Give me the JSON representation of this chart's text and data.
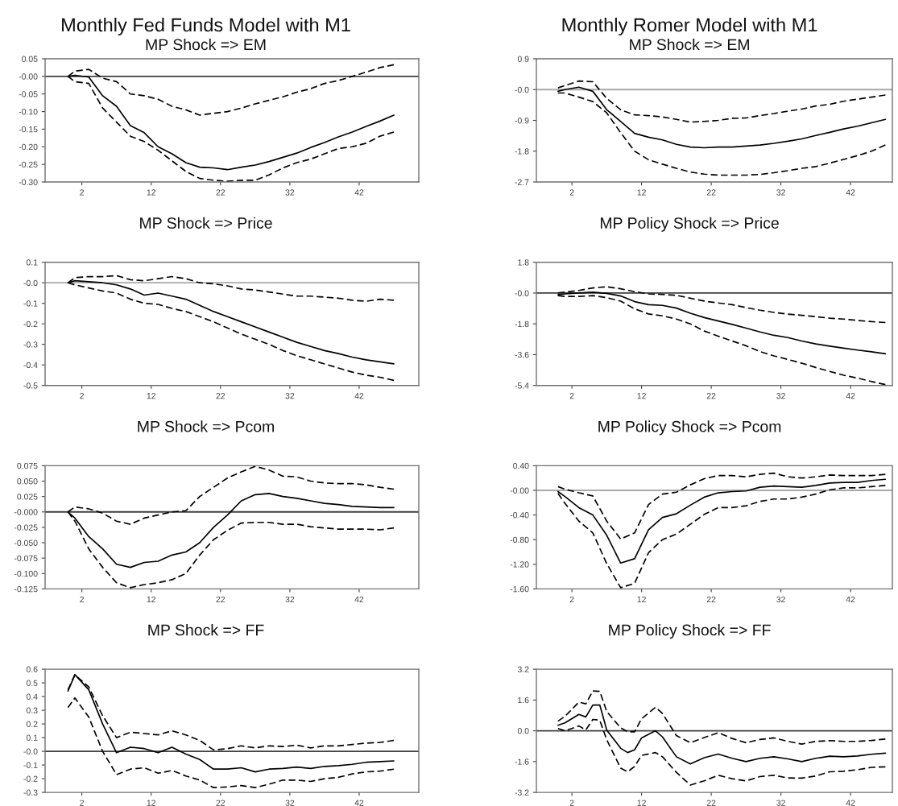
{
  "chart_data": [
    {
      "type": "line",
      "title": "Monthly Fed Funds Model with M1",
      "subtitle": "MP Shock => EM",
      "x": [
        0,
        1,
        3,
        5,
        7,
        9,
        11,
        13,
        15,
        17,
        19,
        21,
        23,
        25,
        27,
        29,
        31,
        33,
        35,
        37,
        39,
        41,
        43,
        45,
        47
      ],
      "xlim": [
        -3.3,
        50.6
      ],
      "xticks": [
        2,
        12,
        22,
        32,
        42
      ],
      "ylim": [
        -0.3,
        0.05
      ],
      "yticks": [
        {
          "value": 0.05,
          "label": "0.05"
        },
        {
          "value": 0,
          "label": "-0.00"
        },
        {
          "value": -0.05,
          "label": "-0.05"
        },
        {
          "value": -0.1,
          "label": "-0.10"
        },
        {
          "value": -0.15,
          "label": "-0.15"
        },
        {
          "value": -0.2,
          "label": "-0.20"
        },
        {
          "value": -0.25,
          "label": "-0.25"
        },
        {
          "value": -0.3,
          "label": "-0.30"
        }
      ],
      "ref_lines": [
        {
          "axis": "y",
          "value": 0,
          "color": "#404040"
        }
      ],
      "series": [
        {
          "color": "#000000",
          "line_style": "solid",
          "values": [
            0,
            0.003,
            -0.002,
            -0.055,
            -0.085,
            -0.14,
            -0.16,
            -0.2,
            -0.22,
            -0.245,
            -0.258,
            -0.26,
            -0.265,
            -0.258,
            -0.252,
            -0.242,
            -0.23,
            -0.218,
            -0.202,
            -0.188,
            -0.172,
            -0.158,
            -0.142,
            -0.127,
            -0.11
          ]
        },
        {
          "color": "#000000",
          "line_style": "dashed",
          "values": [
            0,
            0.015,
            0.02,
            -0.005,
            -0.015,
            -0.05,
            -0.055,
            -0.065,
            -0.085,
            -0.095,
            -0.11,
            -0.105,
            -0.1,
            -0.09,
            -0.078,
            -0.068,
            -0.058,
            -0.045,
            -0.035,
            -0.02,
            -0.012,
            0.0,
            0.012,
            0.025,
            0.033
          ]
        },
        {
          "color": "#000000",
          "line_style": "dashed",
          "values": [
            0,
            -0.015,
            -0.02,
            -0.09,
            -0.13,
            -0.17,
            -0.185,
            -0.21,
            -0.24,
            -0.27,
            -0.29,
            -0.295,
            -0.298,
            -0.295,
            -0.295,
            -0.28,
            -0.26,
            -0.245,
            -0.235,
            -0.22,
            -0.205,
            -0.2,
            -0.19,
            -0.17,
            -0.158
          ]
        }
      ]
    },
    {
      "type": "line",
      "title": "Monthly Romer Model with M1",
      "subtitle": "MP Shock => EM",
      "x": [
        0,
        1,
        3,
        5,
        7,
        9,
        11,
        13,
        15,
        17,
        19,
        21,
        23,
        25,
        27,
        29,
        31,
        33,
        35,
        37,
        39,
        41,
        43,
        45,
        47
      ],
      "xlim": [
        -3.1,
        48
      ],
      "xticks": [
        2,
        12,
        22,
        32,
        42
      ],
      "ylim": [
        -2.7,
        0.9
      ],
      "yticks": [
        {
          "value": 0.9,
          "label": "0.9"
        },
        {
          "value": 0,
          "label": "-0.0"
        },
        {
          "value": -0.9,
          "label": "-0.9"
        },
        {
          "value": -1.8,
          "label": "-1.8"
        },
        {
          "value": -2.7,
          "label": "-2.7"
        }
      ],
      "ref_lines": [
        {
          "axis": "y",
          "value": 0,
          "color": "#a8a8a8"
        }
      ],
      "series": [
        {
          "color": "#000000",
          "line_style": "solid",
          "values": [
            -0.05,
            0.0,
            0.07,
            -0.05,
            -0.59,
            -0.93,
            -1.28,
            -1.39,
            -1.47,
            -1.6,
            -1.68,
            -1.7,
            -1.68,
            -1.68,
            -1.65,
            -1.62,
            -1.57,
            -1.51,
            -1.44,
            -1.34,
            -1.25,
            -1.15,
            -1.07,
            -0.97,
            -0.87
          ]
        },
        {
          "color": "#000000",
          "line_style": "dashed",
          "values": [
            0.05,
            0.12,
            0.25,
            0.23,
            -0.26,
            -0.59,
            -0.74,
            -0.76,
            -0.8,
            -0.87,
            -0.95,
            -0.93,
            -0.9,
            -0.84,
            -0.83,
            -0.76,
            -0.7,
            -0.63,
            -0.57,
            -0.48,
            -0.43,
            -0.34,
            -0.28,
            -0.22,
            -0.16
          ]
        },
        {
          "color": "#000000",
          "line_style": "dashed",
          "values": [
            -0.1,
            -0.1,
            -0.22,
            -0.35,
            -0.68,
            -1.26,
            -1.8,
            -2.05,
            -2.18,
            -2.3,
            -2.41,
            -2.47,
            -2.5,
            -2.5,
            -2.5,
            -2.48,
            -2.43,
            -2.37,
            -2.3,
            -2.25,
            -2.15,
            -2.04,
            -1.93,
            -1.8,
            -1.62
          ]
        }
      ]
    },
    {
      "type": "line",
      "title": "MP Shock => Price",
      "x": [
        0,
        1,
        3,
        5,
        7,
        9,
        11,
        13,
        15,
        17,
        19,
        21,
        23,
        25,
        27,
        29,
        31,
        33,
        35,
        37,
        39,
        41,
        43,
        45,
        47
      ],
      "xlim": [
        -3.3,
        50.6
      ],
      "xticks": [
        2,
        12,
        22,
        32,
        42
      ],
      "ylim": [
        -0.5,
        0.1
      ],
      "yticks": [
        {
          "value": 0.1,
          "label": "0.1"
        },
        {
          "value": 0,
          "label": "-0.0"
        },
        {
          "value": -0.1,
          "label": "-0.1"
        },
        {
          "value": -0.2,
          "label": "-0.2"
        },
        {
          "value": -0.3,
          "label": "-0.3"
        },
        {
          "value": -0.4,
          "label": "-0.4"
        },
        {
          "value": -0.5,
          "label": "-0.5"
        }
      ],
      "ref_lines": [
        {
          "axis": "y",
          "value": 0,
          "color": "#a8a8a8"
        }
      ],
      "series": [
        {
          "color": "#000000",
          "line_style": "solid",
          "values": [
            0,
            0.01,
            0.005,
            0.0,
            -0.01,
            -0.03,
            -0.06,
            -0.05,
            -0.065,
            -0.08,
            -0.11,
            -0.14,
            -0.165,
            -0.19,
            -0.215,
            -0.24,
            -0.265,
            -0.29,
            -0.31,
            -0.33,
            -0.345,
            -0.362,
            -0.375,
            -0.385,
            -0.395
          ]
        },
        {
          "color": "#000000",
          "line_style": "dashed",
          "values": [
            0,
            0.025,
            0.03,
            0.03,
            0.035,
            0.015,
            0.01,
            0.02,
            0.03,
            0.02,
            0.0,
            -0.005,
            -0.015,
            -0.03,
            -0.035,
            -0.045,
            -0.055,
            -0.065,
            -0.065,
            -0.07,
            -0.075,
            -0.085,
            -0.09,
            -0.08,
            -0.085
          ]
        },
        {
          "color": "#000000",
          "line_style": "dashed",
          "values": [
            0,
            -0.01,
            -0.025,
            -0.04,
            -0.05,
            -0.08,
            -0.1,
            -0.105,
            -0.125,
            -0.14,
            -0.165,
            -0.19,
            -0.22,
            -0.25,
            -0.275,
            -0.3,
            -0.33,
            -0.355,
            -0.375,
            -0.395,
            -0.415,
            -0.435,
            -0.45,
            -0.46,
            -0.475
          ]
        }
      ]
    },
    {
      "type": "line",
      "title": "MP Policy Shock => Price",
      "x": [
        0,
        1,
        3,
        5,
        7,
        9,
        11,
        13,
        15,
        17,
        19,
        21,
        23,
        25,
        27,
        29,
        31,
        33,
        35,
        37,
        39,
        41,
        43,
        45,
        47
      ],
      "xlim": [
        -3.1,
        48
      ],
      "xticks": [
        2,
        12,
        22,
        32,
        42
      ],
      "ylim": [
        -5.4,
        1.8
      ],
      "yticks": [
        {
          "value": 1.8,
          "label": "1.8"
        },
        {
          "value": 0,
          "label": "-0.0"
        },
        {
          "value": -1.8,
          "label": "-1.8"
        },
        {
          "value": -3.6,
          "label": "-3.6"
        },
        {
          "value": -5.4,
          "label": "-5.4"
        }
      ],
      "ref_lines": [
        {
          "axis": "y",
          "value": 0,
          "color": "#404040"
        }
      ],
      "series": [
        {
          "color": "#000000",
          "line_style": "solid",
          "values": [
            -0.1,
            -0.05,
            0.0,
            0.05,
            -0.02,
            -0.17,
            -0.5,
            -0.68,
            -0.72,
            -0.88,
            -1.18,
            -1.43,
            -1.63,
            -1.83,
            -2.05,
            -2.27,
            -2.47,
            -2.6,
            -2.8,
            -2.97,
            -3.1,
            -3.22,
            -3.33,
            -3.43,
            -3.55
          ]
        },
        {
          "color": "#000000",
          "line_style": "dashed",
          "values": [
            0.0,
            0.05,
            0.15,
            0.3,
            0.37,
            0.25,
            0.08,
            -0.05,
            -0.08,
            -0.13,
            -0.3,
            -0.47,
            -0.58,
            -0.68,
            -0.85,
            -1.0,
            -1.13,
            -1.23,
            -1.3,
            -1.38,
            -1.47,
            -1.52,
            -1.6,
            -1.67,
            -1.72
          ]
        },
        {
          "color": "#000000",
          "line_style": "dashed",
          "values": [
            -0.15,
            -0.2,
            -0.2,
            -0.15,
            -0.27,
            -0.47,
            -0.92,
            -1.22,
            -1.33,
            -1.52,
            -1.8,
            -2.22,
            -2.52,
            -2.8,
            -3.08,
            -3.42,
            -3.67,
            -3.88,
            -4.1,
            -4.35,
            -4.58,
            -4.8,
            -4.97,
            -5.17,
            -5.35
          ]
        }
      ]
    },
    {
      "type": "line",
      "title": "MP Shock => Pcom",
      "x": [
        0,
        1,
        3,
        5,
        7,
        9,
        11,
        13,
        15,
        17,
        19,
        21,
        23,
        25,
        27,
        29,
        31,
        33,
        35,
        37,
        39,
        41,
        43,
        45,
        47
      ],
      "xlim": [
        -3.3,
        50.6
      ],
      "xticks": [
        2,
        12,
        22,
        32,
        42
      ],
      "ylim": [
        -0.125,
        0.075
      ],
      "yticks": [
        {
          "value": 0.075,
          "label": "0.075"
        },
        {
          "value": 0.05,
          "label": "0.050"
        },
        {
          "value": 0.025,
          "label": "0.025"
        },
        {
          "value": 0,
          "label": "-0.000"
        },
        {
          "value": -0.025,
          "label": "-0.025"
        },
        {
          "value": -0.05,
          "label": "-0.050"
        },
        {
          "value": -0.075,
          "label": "-0.075"
        },
        {
          "value": -0.1,
          "label": "-0.100"
        },
        {
          "value": -0.125,
          "label": "-0.125"
        }
      ],
      "ref_lines": [
        {
          "axis": "y",
          "value": 0,
          "color": "#404040"
        }
      ],
      "series": [
        {
          "color": "#000000",
          "line_style": "solid",
          "values": [
            0,
            -0.01,
            -0.04,
            -0.06,
            -0.085,
            -0.09,
            -0.082,
            -0.08,
            -0.07,
            -0.065,
            -0.05,
            -0.025,
            -0.005,
            0.018,
            0.028,
            0.03,
            0.025,
            0.022,
            0.018,
            0.014,
            0.012,
            0.009,
            0.008,
            0.007,
            0.007
          ]
        },
        {
          "color": "#000000",
          "line_style": "dashed",
          "values": [
            0,
            0.008,
            0.005,
            -0.002,
            -0.015,
            -0.02,
            -0.01,
            -0.005,
            0.0,
            0.002,
            0.025,
            0.04,
            0.055,
            0.065,
            0.074,
            0.068,
            0.058,
            0.057,
            0.05,
            0.047,
            0.046,
            0.046,
            0.044,
            0.04,
            0.037
          ]
        },
        {
          "color": "#000000",
          "line_style": "dashed",
          "values": [
            0,
            -0.015,
            -0.06,
            -0.09,
            -0.115,
            -0.123,
            -0.118,
            -0.115,
            -0.11,
            -0.1,
            -0.07,
            -0.045,
            -0.03,
            -0.018,
            -0.017,
            -0.017,
            -0.02,
            -0.02,
            -0.024,
            -0.026,
            -0.028,
            -0.028,
            -0.028,
            -0.029,
            -0.026
          ]
        }
      ]
    },
    {
      "type": "line",
      "title": "MP Policy Shock => Pcom",
      "x": [
        0,
        1,
        3,
        5,
        7,
        9,
        11,
        13,
        15,
        17,
        19,
        21,
        23,
        25,
        27,
        29,
        31,
        33,
        35,
        37,
        39,
        41,
        43,
        45,
        47
      ],
      "xlim": [
        -3.1,
        48
      ],
      "xticks": [
        2,
        12,
        22,
        32,
        42
      ],
      "ylim": [
        -1.6,
        0.4
      ],
      "yticks": [
        {
          "value": 0.4,
          "label": "0.40"
        },
        {
          "value": 0,
          "label": "-0.00"
        },
        {
          "value": -0.4,
          "label": "-0.40"
        },
        {
          "value": -0.8,
          "label": "-0.80"
        },
        {
          "value": -1.2,
          "label": "-1.20"
        },
        {
          "value": -1.6,
          "label": "-1.60"
        }
      ],
      "ref_lines": [
        {
          "axis": "y",
          "value": 0,
          "color": "#a8a8a8"
        }
      ],
      "series": [
        {
          "color": "#000000",
          "line_style": "solid",
          "values": [
            -0.02,
            -0.1,
            -0.28,
            -0.4,
            -0.73,
            -1.18,
            -1.11,
            -0.64,
            -0.44,
            -0.38,
            -0.24,
            -0.11,
            -0.04,
            -0.02,
            -0.01,
            0.05,
            0.07,
            0.06,
            0.05,
            0.08,
            0.12,
            0.13,
            0.13,
            0.16,
            0.18
          ]
        },
        {
          "color": "#000000",
          "line_style": "dashed",
          "values": [
            0.06,
            0.02,
            -0.04,
            -0.09,
            -0.5,
            -0.79,
            -0.69,
            -0.23,
            -0.06,
            -0.03,
            0.09,
            0.19,
            0.24,
            0.24,
            0.22,
            0.26,
            0.28,
            0.22,
            0.2,
            0.22,
            0.25,
            0.24,
            0.24,
            0.24,
            0.26
          ]
        },
        {
          "color": "#000000",
          "line_style": "dashed",
          "values": [
            -0.05,
            -0.21,
            -0.5,
            -0.69,
            -1.19,
            -1.58,
            -1.51,
            -1.01,
            -0.8,
            -0.71,
            -0.55,
            -0.39,
            -0.28,
            -0.28,
            -0.25,
            -0.18,
            -0.14,
            -0.14,
            -0.11,
            -0.06,
            0.01,
            0.04,
            0.04,
            0.06,
            0.08
          ]
        }
      ]
    },
    {
      "type": "line",
      "title": "MP Shock => FF",
      "x": [
        0,
        1,
        3,
        5,
        7,
        9,
        11,
        13,
        15,
        17,
        19,
        21,
        23,
        25,
        27,
        29,
        31,
        33,
        35,
        37,
        39,
        41,
        43,
        45,
        47
      ],
      "xlim": [
        -3.3,
        50.6
      ],
      "xticks": [
        2,
        12,
        22,
        32,
        42
      ],
      "ylim": [
        -0.3,
        0.6
      ],
      "yticks": [
        {
          "value": 0.6,
          "label": "0.6"
        },
        {
          "value": 0.5,
          "label": "0.5"
        },
        {
          "value": 0.4,
          "label": "0.4"
        },
        {
          "value": 0.3,
          "label": "0.3"
        },
        {
          "value": 0.2,
          "label": "0.2"
        },
        {
          "value": 0.1,
          "label": "0.1"
        },
        {
          "value": 0,
          "label": "-0.0"
        },
        {
          "value": -0.1,
          "label": "-0.1"
        },
        {
          "value": -0.2,
          "label": "-0.2"
        },
        {
          "value": -0.3,
          "label": "-0.3"
        }
      ],
      "ref_lines": [
        {
          "axis": "y",
          "value": 0,
          "color": "#404040"
        }
      ],
      "series": [
        {
          "color": "#000000",
          "line_style": "solid",
          "values": [
            0.44,
            0.56,
            0.45,
            0.2,
            -0.01,
            0.03,
            0.02,
            -0.01,
            0.03,
            -0.02,
            -0.06,
            -0.13,
            -0.13,
            -0.12,
            -0.15,
            -0.13,
            -0.125,
            -0.115,
            -0.125,
            -0.11,
            -0.105,
            -0.095,
            -0.08,
            -0.075,
            -0.07
          ]
        },
        {
          "color": "#000000",
          "line_style": "dashed",
          "values": [
            0.45,
            0.56,
            0.47,
            0.26,
            0.1,
            0.14,
            0.13,
            0.12,
            0.15,
            0.12,
            0.08,
            0.01,
            0.02,
            0.04,
            0.025,
            0.04,
            0.035,
            0.045,
            0.025,
            0.04,
            0.04,
            0.05,
            0.06,
            0.065,
            0.08
          ]
        },
        {
          "color": "#000000",
          "line_style": "dashed",
          "values": [
            0.32,
            0.39,
            0.25,
            0.0,
            -0.17,
            -0.13,
            -0.12,
            -0.16,
            -0.14,
            -0.18,
            -0.21,
            -0.265,
            -0.26,
            -0.25,
            -0.265,
            -0.24,
            -0.21,
            -0.21,
            -0.22,
            -0.2,
            -0.19,
            -0.165,
            -0.15,
            -0.145,
            -0.13
          ]
        }
      ]
    },
    {
      "type": "line",
      "title": "MP Policy Shock => FF",
      "x": [
        0,
        1,
        3,
        4,
        5,
        6,
        7,
        9,
        10,
        11,
        12,
        14,
        15,
        17,
        19,
        21,
        23,
        25,
        27,
        29,
        31,
        33,
        35,
        37,
        39,
        41,
        43,
        45,
        47
      ],
      "xlim": [
        -3.1,
        48
      ],
      "xticks": [
        2,
        12,
        22,
        32,
        42
      ],
      "ylim": [
        -3.2,
        3.2
      ],
      "yticks": [
        {
          "value": 3.2,
          "label": "3.2"
        },
        {
          "value": 1.6,
          "label": "1.6"
        },
        {
          "value": 0,
          "label": "0.0"
        },
        {
          "value": -1.6,
          "label": "-1.6"
        },
        {
          "value": -3.2,
          "label": "-3.2"
        }
      ],
      "ref_lines": [
        {
          "axis": "y",
          "value": 0,
          "color": "#404040"
        }
      ],
      "series": [
        {
          "color": "#000000",
          "line_style": "solid",
          "values": [
            0.29,
            0.41,
            0.85,
            0.72,
            1.34,
            1.34,
            0.04,
            -0.91,
            -1.13,
            -0.99,
            -0.37,
            0.0,
            -0.32,
            -1.35,
            -1.72,
            -1.4,
            -1.21,
            -1.43,
            -1.6,
            -1.43,
            -1.35,
            -1.46,
            -1.6,
            -1.43,
            -1.32,
            -1.35,
            -1.31,
            -1.22,
            -1.16
          ]
        },
        {
          "color": "#000000",
          "line_style": "dashed",
          "values": [
            0.5,
            0.75,
            1.49,
            1.4,
            2.07,
            2.05,
            1.0,
            0.15,
            -0.05,
            -0.05,
            0.63,
            1.22,
            0.9,
            -0.25,
            -0.62,
            -0.35,
            -0.1,
            -0.4,
            -0.62,
            -0.45,
            -0.37,
            -0.55,
            -0.69,
            -0.55,
            -0.51,
            -0.55,
            -0.55,
            -0.5,
            -0.43
          ]
        },
        {
          "color": "#000000",
          "line_style": "dashed",
          "values": [
            0.12,
            0.0,
            0.25,
            0.05,
            0.59,
            0.55,
            -0.47,
            -1.94,
            -2.13,
            -1.85,
            -1.28,
            -1.13,
            -1.35,
            -2.16,
            -2.82,
            -2.6,
            -2.31,
            -2.49,
            -2.6,
            -2.38,
            -2.31,
            -2.45,
            -2.46,
            -2.35,
            -2.13,
            -2.1,
            -2.02,
            -1.9,
            -1.87
          ]
        }
      ]
    }
  ]
}
